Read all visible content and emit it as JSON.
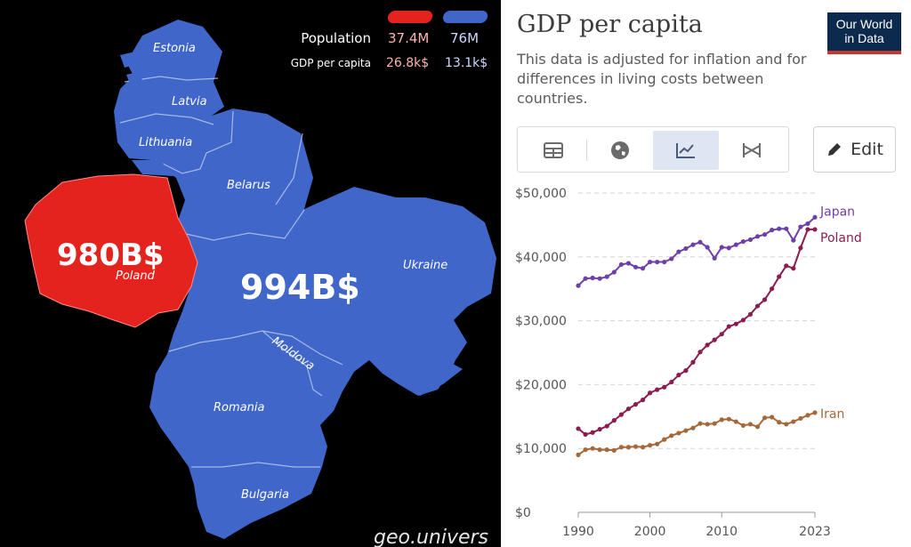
{
  "map": {
    "countries": {
      "estonia": "Estonia",
      "latvia": "Latvia",
      "lithuania": "Lithuania",
      "belarus": "Belarus",
      "ukraine": "Ukraine",
      "moldova": "Moldova",
      "romania": "Romania",
      "bulgaria": "Bulgaria",
      "poland": "Poland"
    },
    "poland_value": "980B$",
    "group_value": "994B$",
    "legend": {
      "population_label": "Population",
      "gdp_label": "GDP per capita",
      "red_population": "37.4M",
      "blue_population": "76M",
      "red_gdp": "26.8k$",
      "blue_gdp": "13.1k$"
    },
    "colors": {
      "red": "#e4231f",
      "blue": "#3f66c8",
      "red_text": "#ffb3b0",
      "blue_text": "#cdd9ff"
    },
    "watermark": "geo.univers"
  },
  "chart_header": {
    "title": "GDP per capita",
    "subtitle": "This data is adjusted for inflation and for differences in living costs between countries.",
    "logo_line1": "Our World",
    "logo_line2": "in Data",
    "edit_label": "Edit",
    "tab_icons": [
      "table-icon",
      "globe-icon",
      "line-chart-icon",
      "slope-chart-icon"
    ]
  },
  "chart_data": {
    "type": "line",
    "title": "GDP per capita",
    "subtitle": "This data is adjusted for inflation and for differences in living costs between countries.",
    "xlabel": "",
    "ylabel": "",
    "xlim": [
      1990,
      2023
    ],
    "ylim": [
      0,
      50000
    ],
    "xticks": [
      1990,
      2000,
      2010,
      2023
    ],
    "xtick_labels": [
      "1990",
      "2000",
      "2010",
      "2023"
    ],
    "yticks": [
      0,
      10000,
      20000,
      30000,
      40000,
      50000
    ],
    "ytick_labels": [
      "$0",
      "$10,000",
      "$20,000",
      "$30,000",
      "$40,000",
      "$50,000"
    ],
    "grid": true,
    "legend": "right-end labels",
    "x": [
      1990,
      1991,
      1992,
      1993,
      1994,
      1995,
      1996,
      1997,
      1998,
      1999,
      2000,
      2001,
      2002,
      2003,
      2004,
      2005,
      2006,
      2007,
      2008,
      2009,
      2010,
      2011,
      2012,
      2013,
      2014,
      2015,
      2016,
      2017,
      2018,
      2019,
      2020,
      2021,
      2022,
      2023
    ],
    "series": [
      {
        "name": "Japan",
        "color": "#6d3fa8",
        "values": [
          35500,
          36600,
          36700,
          36600,
          36900,
          37600,
          38800,
          39000,
          38400,
          38200,
          39200,
          39200,
          39200,
          39700,
          40800,
          41300,
          41900,
          42300,
          41500,
          39800,
          41500,
          41400,
          41900,
          42400,
          42700,
          43200,
          43500,
          44200,
          44400,
          44400,
          42600,
          44700,
          45200,
          46200
        ]
      },
      {
        "name": "Poland",
        "color": "#8a1c4f",
        "values": [
          13100,
          12200,
          12500,
          13000,
          13500,
          14400,
          15300,
          16200,
          16900,
          17600,
          18700,
          19200,
          19600,
          20400,
          21500,
          22200,
          23500,
          25100,
          26200,
          27000,
          27900,
          29100,
          29500,
          30100,
          31000,
          32300,
          33300,
          35000,
          36900,
          38600,
          38200,
          41400,
          44300,
          44300
        ]
      },
      {
        "name": "Iran",
        "color": "#a4693a",
        "values": [
          9000,
          9800,
          10000,
          9800,
          9800,
          9700,
          10200,
          10200,
          10300,
          10200,
          10500,
          10700,
          11400,
          12000,
          12400,
          12800,
          13200,
          13900,
          13800,
          13900,
          14500,
          14600,
          14200,
          13600,
          13800,
          13400,
          14800,
          14900,
          14100,
          13800,
          14200,
          14700,
          15200,
          15600
        ]
      }
    ]
  }
}
